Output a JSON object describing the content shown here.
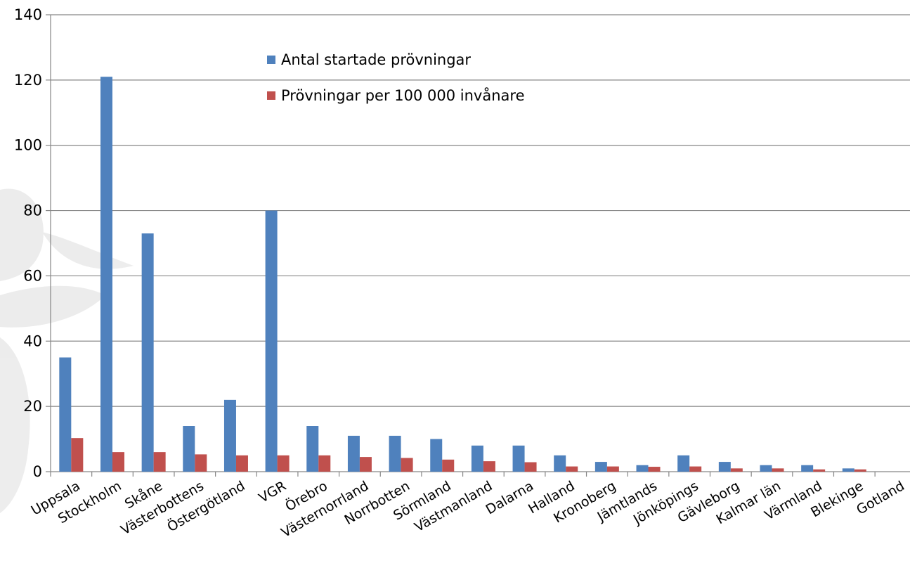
{
  "chart_data": {
    "type": "bar",
    "categories": [
      "Uppsala",
      "Stockholm",
      "Skåne",
      "Västerbottens",
      "Östergötland",
      "VGR",
      "Örebro",
      "Västernorrland",
      "Norrbotten",
      "Sörmland",
      "Västmanland",
      "Dalarna",
      "Halland",
      "Kronoberg",
      "Jämtlands",
      "Jönköpings",
      "Gävleborg",
      "Kalmar län",
      "Värmland",
      "Blekinge",
      "Gotland"
    ],
    "series": [
      {
        "name": "Antal startade prövningar",
        "color": "#4F81BD",
        "values": [
          35,
          121,
          73,
          14,
          22,
          80,
          14,
          11,
          11,
          10,
          8,
          8,
          5,
          3,
          2,
          5,
          3,
          2,
          2,
          1,
          0
        ]
      },
      {
        "name": "Prövningar per 100 000 invånare",
        "color": "#C0504D",
        "values": [
          10.3,
          6,
          6,
          5.3,
          5,
          5,
          5,
          4.5,
          4.2,
          3.7,
          3.2,
          2.9,
          1.6,
          1.6,
          1.5,
          1.6,
          1,
          1,
          0.7,
          0.7,
          0
        ]
      }
    ],
    "yticks": [
      "0",
      "20",
      "40",
      "60",
      "80",
      "100",
      "120",
      "140"
    ],
    "ylim": [
      0,
      140
    ],
    "grid": true,
    "legend_position": "top-center",
    "title": "",
    "xlabel": "",
    "ylabel": ""
  }
}
